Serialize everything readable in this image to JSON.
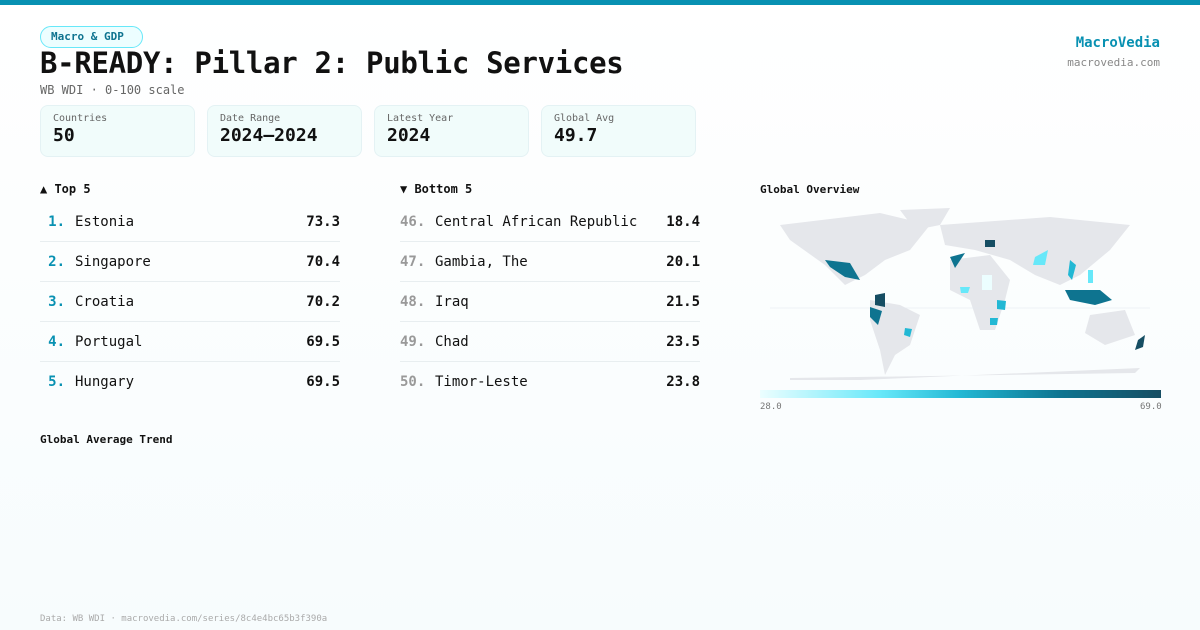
{
  "category": "Macro & GDP",
  "title": "B-READY: Pillar 2: Public Services",
  "subtitle": "WB WDI · 0-100 scale",
  "brand": {
    "name": "MacroVedia",
    "site": "macrovedia.com"
  },
  "stats": [
    {
      "label": "Countries",
      "value": "50"
    },
    {
      "label": "Date Range",
      "value": "2024–2024"
    },
    {
      "label": "Latest Year",
      "value": "2024"
    },
    {
      "label": "Global Avg",
      "value": "49.7"
    }
  ],
  "top": {
    "heading": "▲ Top 5",
    "items": [
      {
        "rank": "1.",
        "name": "Estonia",
        "value": "73.3"
      },
      {
        "rank": "2.",
        "name": "Singapore",
        "value": "70.4"
      },
      {
        "rank": "3.",
        "name": "Croatia",
        "value": "70.2"
      },
      {
        "rank": "4.",
        "name": "Portugal",
        "value": "69.5"
      },
      {
        "rank": "5.",
        "name": "Hungary",
        "value": "69.5"
      }
    ]
  },
  "bottom": {
    "heading": "▼ Bottom 5",
    "items": [
      {
        "rank": "46.",
        "name": "Central African Republic",
        "value": "18.4"
      },
      {
        "rank": "47.",
        "name": "Gambia, The",
        "value": "20.1"
      },
      {
        "rank": "48.",
        "name": "Iraq",
        "value": "21.5"
      },
      {
        "rank": "49.",
        "name": "Chad",
        "value": "23.5"
      },
      {
        "rank": "50.",
        "name": "Timor-Leste",
        "value": "23.8"
      }
    ]
  },
  "map": {
    "heading": "Global Overview",
    "legend_min": "28.0",
    "legend_max": "69.0",
    "colors": {
      "low": "#ecfeff",
      "mid": "#22b8d4",
      "high": "#164e63",
      "land": "#e5e7eb"
    }
  },
  "trend": {
    "heading": "Global Average Trend"
  },
  "footer": "Data: WB WDI · macrovedia.com/series/8c4e4bc65b3f390a",
  "accent": "#0891b2"
}
